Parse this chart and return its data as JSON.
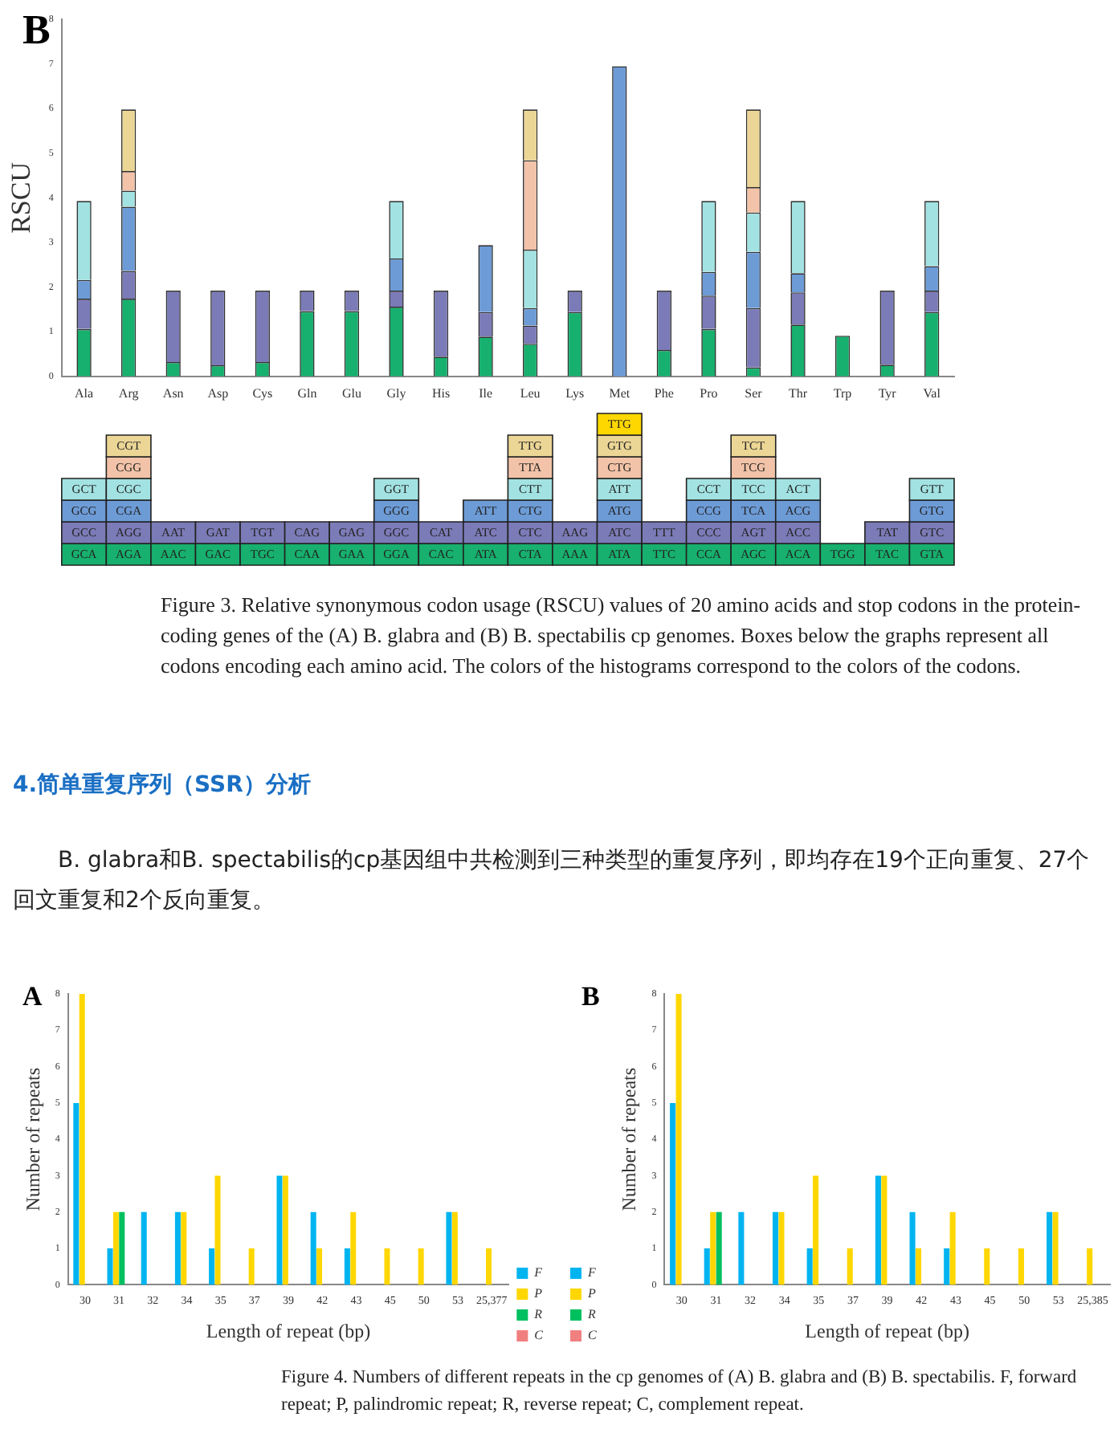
{
  "chart_data": [
    {
      "type": "bar",
      "title": "B",
      "ylabel": "RSCU",
      "stacked": true,
      "grid": false,
      "legend": false,
      "categories": [
        "Ala",
        "Arg",
        "Asn",
        "Asp",
        "Cys",
        "Gln",
        "Glu",
        "Gly",
        "His",
        "Ile",
        "Leu",
        "Lys",
        "Met",
        "Phe",
        "Pro",
        "Ser",
        "Thr",
        "Trp",
        "Tyr",
        "Val"
      ],
      "ylim": [
        0,
        8
      ],
      "yticks": [
        0,
        1,
        2,
        3,
        4,
        5,
        6,
        7,
        8
      ],
      "series": [
        {
          "color": "#17b06e",
          "values": [
            1.06,
            1.74,
            0.32,
            0.25,
            0.32,
            1.46,
            1.46,
            1.56,
            0.44,
            0.89,
            0.73,
            1.44,
            0,
            0.59,
            1.06,
            0.2,
            1.16,
            0.91,
            0.26,
            1.44
          ],
          "value_labels": [
            "GCA",
            "AGA",
            "AAC",
            "GAC",
            "TGC",
            "CAA",
            "GAA",
            "GGA",
            "CAC",
            "ATA",
            "CTA",
            "AAA",
            "ATA",
            "TTC",
            "CCA",
            "AGC",
            "ACA",
            "TGG",
            "TAC",
            "GTA"
          ]
        },
        {
          "color": "#7b7bb8",
          "values": [
            0.68,
            0.62,
            1.6,
            1.67,
            1.6,
            0.46,
            0.46,
            0.36,
            1.48,
            0.55,
            0.41,
            0.48,
            0,
            1.33,
            0.75,
            1.33,
            0.72,
            null,
            1.66,
            0.48
          ],
          "value_labels": [
            "GCC",
            "AGG",
            "AAT",
            "GAT",
            "TGT",
            "CAG",
            "GAG",
            "GGC",
            "CAT",
            "ATC",
            "CTC",
            "AAG",
            "ATC",
            "TTT",
            "CCC",
            "AGT",
            "ACC",
            null,
            "TAT",
            "GTC"
          ]
        },
        {
          "color": "#6d9bd6",
          "values": [
            0.42,
            1.44,
            null,
            null,
            null,
            null,
            null,
            0.72,
            null,
            1.5,
            0.39,
            null,
            6.95,
            null,
            0.53,
            1.26,
            0.43,
            null,
            null,
            0.55
          ],
          "value_labels": [
            "GCG",
            "CGA",
            null,
            null,
            null,
            null,
            null,
            "GGG",
            null,
            "ATT",
            "CTG",
            null,
            "ATG",
            null,
            "CCG",
            "TCA",
            "ACG",
            null,
            null,
            "GTG"
          ]
        },
        {
          "color": "#a3e2e2",
          "values": [
            1.77,
            0.36,
            null,
            null,
            null,
            null,
            null,
            1.29,
            null,
            null,
            1.31,
            null,
            0,
            null,
            1.59,
            0.88,
            1.62,
            null,
            null,
            1.46
          ],
          "value_labels": [
            "GCT",
            "CGC",
            null,
            null,
            null,
            null,
            null,
            "GGT",
            null,
            null,
            "CTT",
            null,
            "ATT",
            null,
            "CCT",
            "TCC",
            "ACT",
            null,
            null,
            "GTT"
          ]
        },
        {
          "color": "#f2c3a8",
          "values": [
            null,
            0.44,
            null,
            null,
            null,
            null,
            null,
            null,
            null,
            null,
            2.0,
            null,
            0,
            null,
            null,
            0.57,
            null,
            null,
            null,
            null
          ],
          "value_labels": [
            null,
            "CGG",
            null,
            null,
            null,
            null,
            null,
            null,
            null,
            null,
            "TTA",
            null,
            "CTG",
            null,
            null,
            "TCG",
            null,
            null,
            null,
            null
          ]
        },
        {
          "color": "#ecd696",
          "values": [
            null,
            1.38,
            null,
            null,
            null,
            null,
            null,
            null,
            null,
            null,
            1.14,
            null,
            0,
            null,
            null,
            1.74,
            null,
            null,
            null,
            null
          ],
          "value_labels": [
            null,
            "CGT",
            null,
            null,
            null,
            null,
            null,
            null,
            null,
            null,
            "TTG",
            null,
            "GTG",
            null,
            null,
            "TCT",
            null,
            null,
            null,
            null
          ]
        },
        {
          "color": "#ffd700",
          "values": [
            null,
            null,
            null,
            null,
            null,
            null,
            null,
            null,
            null,
            null,
            null,
            null,
            null,
            null,
            null,
            null,
            null,
            null,
            null,
            null
          ],
          "value_labels": [
            null,
            null,
            null,
            null,
            null,
            null,
            null,
            null,
            null,
            null,
            null,
            null,
            "TTG",
            null,
            null,
            null,
            null,
            null,
            null,
            null
          ]
        }
      ],
      "annotations": [
        "Figure 3. Relative synonymous codon usage (RSCU) values of 20 amino acids and stop codons in the protein-coding genes of the (A) B. glabra and (B) B. spectabilis cp genomes. Boxes below the graphs represent all codons encoding each amino acid. The colors of the histograms correspond to the colors of the codons.",
        "4.简单重复序列（SSR）分析",
        "B. glabra和B. spectabilis的cp基因组中共检测到三种类型的重复序列，即均存在19个正向重复、27个回文重复和2个反向重复。"
      ]
    },
    {
      "type": "bar",
      "title": "A",
      "xlabel": "Length of repeat (bp)",
      "ylabel": "Number of repeats",
      "grid": false,
      "legend": "right",
      "categories": [
        "30",
        "31",
        "32",
        "34",
        "35",
        "37",
        "39",
        "42",
        "43",
        "45",
        "50",
        "53",
        "25,377"
      ],
      "ylim": [
        0,
        8
      ],
      "yticks": [
        0,
        1,
        2,
        3,
        4,
        5,
        6,
        7,
        8
      ],
      "series": [
        {
          "name": "F",
          "color": "#00b4f0",
          "values": [
            5,
            1,
            2,
            2,
            1,
            0,
            3,
            2,
            1,
            0,
            0,
            2,
            0
          ]
        },
        {
          "name": "P",
          "color": "#ffd700",
          "values": [
            8,
            2,
            0,
            2,
            3,
            1,
            3,
            1,
            2,
            1,
            1,
            2,
            1
          ]
        },
        {
          "name": "R",
          "color": "#00c060",
          "values": [
            0,
            2,
            0,
            0,
            0,
            0,
            0,
            0,
            0,
            0,
            0,
            0,
            0
          ]
        },
        {
          "name": "C",
          "color": "#f08080",
          "values": [
            0,
            0,
            0,
            0,
            0,
            0,
            0,
            0,
            0,
            0,
            0,
            0,
            0
          ]
        }
      ]
    },
    {
      "type": "bar",
      "title": "B",
      "xlabel": "Length of repeat (bp)",
      "ylabel": "Number of repeats",
      "grid": false,
      "legend": "left",
      "categories": [
        "30",
        "31",
        "32",
        "34",
        "35",
        "37",
        "39",
        "42",
        "43",
        "45",
        "50",
        "53",
        "25,385"
      ],
      "ylim": [
        0,
        8
      ],
      "yticks": [
        0,
        1,
        2,
        3,
        4,
        5,
        6,
        7,
        8
      ],
      "series": [
        {
          "name": "F",
          "color": "#00b4f0",
          "values": [
            5,
            1,
            2,
            2,
            1,
            0,
            3,
            2,
            1,
            0,
            0,
            2,
            0
          ]
        },
        {
          "name": "P",
          "color": "#ffd700",
          "values": [
            8,
            2,
            0,
            2,
            3,
            1,
            3,
            1,
            2,
            1,
            1,
            2,
            1
          ]
        },
        {
          "name": "R",
          "color": "#00c060",
          "values": [
            0,
            2,
            0,
            0,
            0,
            0,
            0,
            0,
            0,
            0,
            0,
            0,
            0
          ]
        },
        {
          "name": "C",
          "color": "#f08080",
          "values": [
            0,
            0,
            0,
            0,
            0,
            0,
            0,
            0,
            0,
            0,
            0,
            0,
            0
          ]
        }
      ],
      "annotations": [
        "Figure 4. Numbers of different repeats in the cp genomes of (A) B. glabra and (B) B. spectabilis. F, forward repeat; P, palindromic repeat; R, reverse repeat; C, complement repeat."
      ]
    }
  ]
}
